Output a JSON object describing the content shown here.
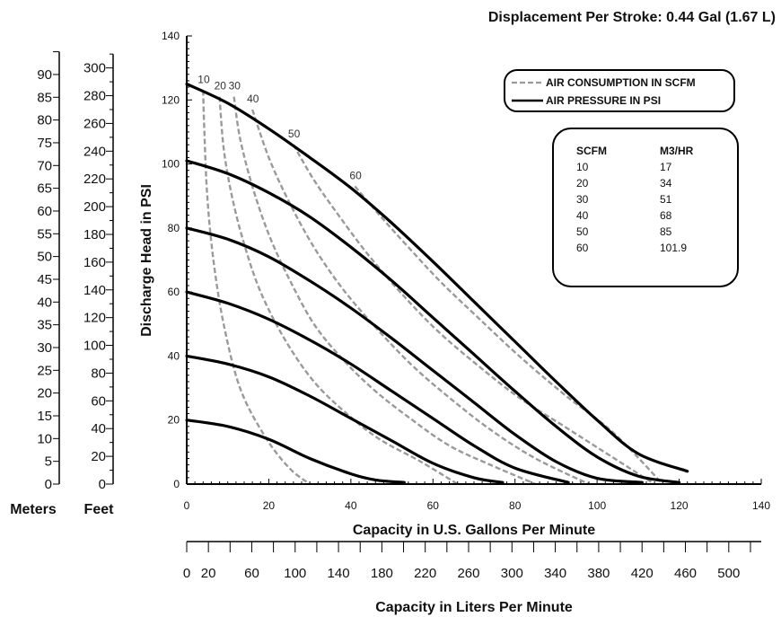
{
  "chart_data": {
    "type": "line",
    "title": "Displacement Per Stroke: 0.44 Gal (1.67 L)",
    "xlabel": "Capacity in U.S. Gallons Per Minute",
    "ylabel": "Discharge Head in PSI",
    "xlim": [
      0,
      140
    ],
    "ylim": [
      0,
      140
    ],
    "x_ticks": [
      0,
      20,
      40,
      60,
      80,
      100,
      120,
      140
    ],
    "y_ticks": [
      0,
      20,
      40,
      60,
      80,
      100,
      120,
      140
    ],
    "grid": false,
    "secondary_x_axis": {
      "label": "Capacity in Liters Per Minute",
      "ticks": [
        0,
        20,
        60,
        100,
        140,
        180,
        220,
        260,
        300,
        340,
        380,
        420,
        460,
        500
      ]
    },
    "secondary_y_axes": [
      {
        "label": "Feet",
        "ticks": [
          0,
          20,
          40,
          60,
          80,
          100,
          120,
          140,
          160,
          180,
          200,
          220,
          240,
          260,
          280,
          300
        ]
      },
      {
        "label": "Meters",
        "ticks": [
          0,
          5,
          10,
          15,
          20,
          25,
          30,
          35,
          40,
          45,
          50,
          55,
          60,
          65,
          70,
          75,
          80,
          85,
          90
        ]
      }
    ],
    "legend": {
      "position": "top-right",
      "entries": [
        {
          "label": "AIR CONSUMPTION IN SCFM",
          "style": "dashed",
          "color": "#9a9a9a"
        },
        {
          "label": "AIR PRESSURE IN PSI",
          "style": "solid",
          "color": "#000000"
        }
      ]
    },
    "pressure_series": [
      {
        "x": [
          0,
          10,
          20,
          30,
          40,
          50,
          60,
          70,
          80,
          90,
          100,
          110,
          122
        ],
        "y": [
          125,
          119,
          111,
          102,
          92.5,
          81.5,
          69.5,
          57,
          44.5,
          32,
          20,
          9.5,
          4
        ]
      },
      {
        "x": [
          0,
          10,
          20,
          30,
          40,
          50,
          60,
          70,
          80,
          90,
          100,
          110,
          120
        ],
        "y": [
          101,
          97,
          91,
          83.5,
          74,
          63.5,
          52,
          40.5,
          29,
          18,
          8.5,
          2.5,
          0.5
        ]
      },
      {
        "x": [
          0,
          10,
          20,
          30,
          40,
          50,
          60,
          70,
          80,
          90,
          100,
          111
        ],
        "y": [
          80,
          76.5,
          71,
          63.5,
          55,
          45.5,
          35.5,
          25.5,
          15.5,
          7,
          1.8,
          0.5
        ]
      },
      {
        "x": [
          0,
          10,
          20,
          30,
          40,
          50,
          60,
          70,
          80,
          93
        ],
        "y": [
          60,
          56.5,
          51.5,
          45,
          37.5,
          29,
          20.5,
          12,
          5,
          0.5
        ]
      },
      {
        "x": [
          0,
          10,
          20,
          30,
          40,
          50,
          60,
          70,
          77
        ],
        "y": [
          40,
          37.5,
          33.5,
          27.5,
          20.5,
          13.5,
          6.5,
          2,
          0.5
        ]
      },
      {
        "x": [
          0,
          10,
          20,
          30,
          40,
          46,
          53
        ],
        "y": [
          20,
          18,
          14,
          8,
          3.2,
          1.3,
          0.5
        ]
      }
    ],
    "consumption_series": [
      {
        "name": "10",
        "x": [
          4,
          4.3,
          5,
          6.5,
          9,
          13,
          19,
          25,
          30
        ],
        "y": [
          123,
          110,
          90,
          70,
          50,
          30,
          15,
          5,
          0
        ]
      },
      {
        "name": "20",
        "x": [
          8,
          9,
          11,
          14,
          18,
          24,
          31,
          39,
          47,
          57,
          66
        ],
        "y": [
          121,
          105,
          90,
          75,
          60,
          45,
          32,
          22,
          14,
          7,
          0
        ]
      },
      {
        "name": "30",
        "x": [
          11.5,
          13,
          16,
          20,
          25,
          31,
          38,
          46,
          55,
          64,
          74,
          85
        ],
        "y": [
          121,
          108,
          93,
          78,
          64,
          50,
          39,
          29,
          20,
          12,
          6,
          0
        ]
      },
      {
        "name": "40",
        "x": [
          16,
          20,
          25,
          31,
          38,
          46,
          55,
          64,
          74,
          85,
          98
        ],
        "y": [
          117,
          102,
          88,
          74,
          61,
          49,
          37,
          27,
          17,
          8,
          0
        ]
      },
      {
        "name": "50",
        "x": [
          26,
          31,
          37,
          44,
          52,
          61,
          71,
          81,
          92,
          103,
          114
        ],
        "y": [
          106,
          95,
          84,
          72,
          60,
          48,
          37,
          27,
          18,
          9,
          0
        ]
      },
      {
        "name": "60",
        "x": [
          41,
          47,
          54,
          62,
          71,
          81,
          92,
          104,
          116
        ],
        "y": [
          93,
          84,
          74,
          63,
          52,
          40,
          28,
          16,
          0
        ]
      }
    ],
    "conversion_table": {
      "headers": [
        "SCFM",
        "M3/HR"
      ],
      "rows": [
        [
          "10",
          "17"
        ],
        [
          "20",
          "34"
        ],
        [
          "30",
          "51"
        ],
        [
          "40",
          "68"
        ],
        [
          "50",
          "85"
        ],
        [
          "60",
          "101.9"
        ]
      ]
    }
  }
}
